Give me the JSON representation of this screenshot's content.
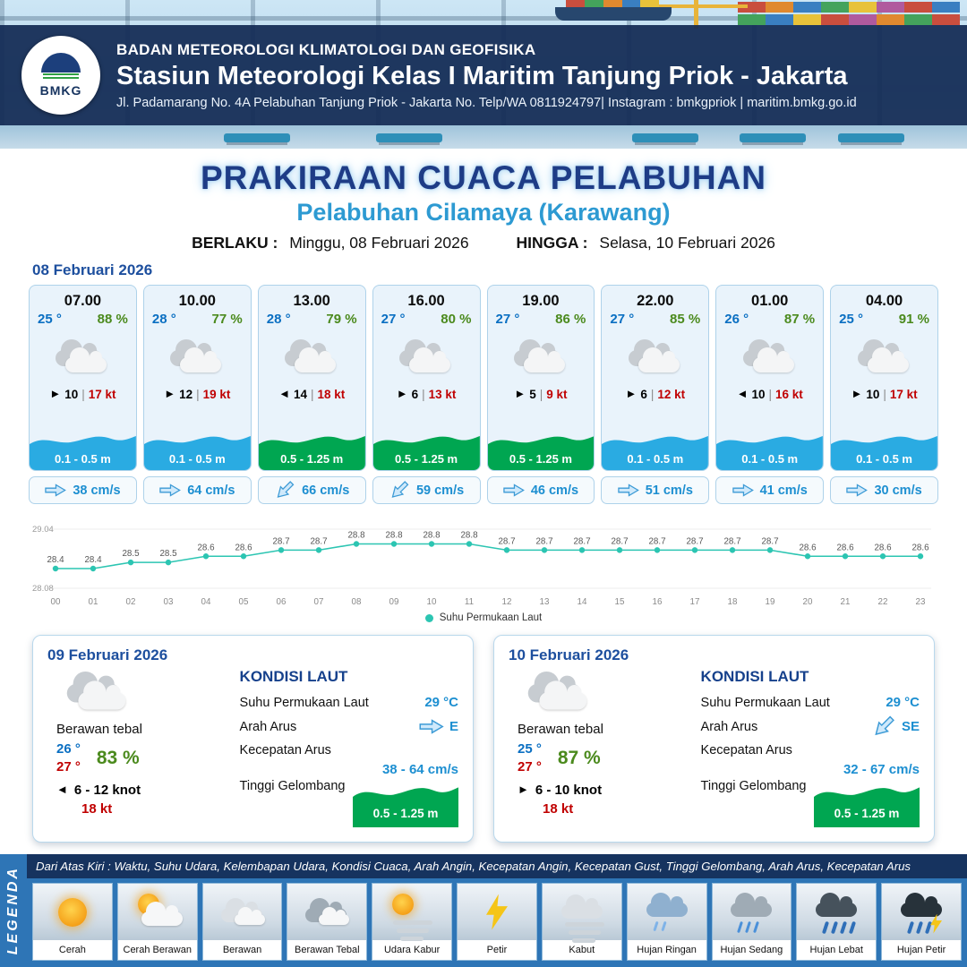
{
  "header": {
    "logo_text": "BMKG",
    "agency": "BADAN METEOROLOGI KLIMATOLOGI DAN GEOFISIKA",
    "station": "Stasiun Meteorologi Kelas I Maritim Tanjung Priok - Jakarta",
    "address": "Jl. Padamarang No. 4A Pelabuhan Tanjung Priok - Jakarta No. Telp/WA 0811924797| Instagram : bmkgpriok | maritim.bmkg.go.id"
  },
  "title": {
    "main": "PRAKIRAAN CUACA PELABUHAN",
    "subtitle": "Pelabuhan Cilamaya (Karawang)",
    "valid_label": "BERLAKU :",
    "valid_value": "Minggu, 08 Februari 2026",
    "until_label": "HINGGA :",
    "until_value": "Selasa, 10 Februari 2026"
  },
  "separators": {
    "wind": "|"
  },
  "forecast": {
    "date": "08 Februari 2026",
    "cards": [
      {
        "time": "07.00",
        "temp": "25 °",
        "humidity": "88 %",
        "wind_dir": "E",
        "wind_speed": "10",
        "wind_gust": "17 kt",
        "wave": "0.1 - 0.5 m",
        "wave_color": "blue",
        "current_speed": "38 cm/s",
        "current_dir": "E"
      },
      {
        "time": "10.00",
        "temp": "28 °",
        "humidity": "77 %",
        "wind_dir": "E",
        "wind_speed": "12",
        "wind_gust": "19 kt",
        "wave": "0.1 - 0.5 m",
        "wave_color": "blue",
        "current_speed": "64 cm/s",
        "current_dir": "E"
      },
      {
        "time": "13.00",
        "temp": "28 °",
        "humidity": "79 %",
        "wind_dir": "W",
        "wind_speed": "14",
        "wind_gust": "18 kt",
        "wave": "0.5 - 1.25 m",
        "wave_color": "green",
        "current_speed": "66 cm/s",
        "current_dir": "SE"
      },
      {
        "time": "16.00",
        "temp": "27 °",
        "humidity": "80 %",
        "wind_dir": "E",
        "wind_speed": "6",
        "wind_gust": "13 kt",
        "wave": "0.5 - 1.25 m",
        "wave_color": "green",
        "current_speed": "59 cm/s",
        "current_dir": "SE"
      },
      {
        "time": "19.00",
        "temp": "27 °",
        "humidity": "86 %",
        "wind_dir": "E",
        "wind_speed": "5",
        "wind_gust": "9 kt",
        "wave": "0.5 - 1.25 m",
        "wave_color": "green",
        "current_speed": "46 cm/s",
        "current_dir": "E"
      },
      {
        "time": "22.00",
        "temp": "27 °",
        "humidity": "85 %",
        "wind_dir": "E",
        "wind_speed": "6",
        "wind_gust": "12 kt",
        "wave": "0.1 - 0.5 m",
        "wave_color": "blue",
        "current_speed": "51 cm/s",
        "current_dir": "E"
      },
      {
        "time": "01.00",
        "temp": "26 °",
        "humidity": "87 %",
        "wind_dir": "W",
        "wind_speed": "10",
        "wind_gust": "16 kt",
        "wave": "0.1 - 0.5 m",
        "wave_color": "blue",
        "current_speed": "41 cm/s",
        "current_dir": "E"
      },
      {
        "time": "04.00",
        "temp": "25 °",
        "humidity": "91 %",
        "wind_dir": "E",
        "wind_speed": "10",
        "wind_gust": "17 kt",
        "wave": "0.1 - 0.5 m",
        "wave_color": "blue",
        "current_speed": "30 cm/s",
        "current_dir": "E"
      }
    ]
  },
  "chart_data": {
    "type": "line",
    "series_name": "Suhu Permukaan Laut",
    "x": [
      "00",
      "01",
      "02",
      "03",
      "04",
      "05",
      "06",
      "07",
      "08",
      "09",
      "10",
      "11",
      "12",
      "13",
      "14",
      "15",
      "16",
      "17",
      "18",
      "19",
      "20",
      "21",
      "22",
      "23"
    ],
    "values": [
      28.4,
      28.4,
      28.5,
      28.5,
      28.6,
      28.6,
      28.7,
      28.7,
      28.8,
      28.8,
      28.8,
      28.8,
      28.7,
      28.7,
      28.7,
      28.7,
      28.7,
      28.7,
      28.7,
      28.7,
      28.6,
      28.6,
      28.6,
      28.6
    ],
    "ylim": [
      28.08,
      29.04
    ],
    "line_color": "#2cc5b2",
    "legend_position": "bottom",
    "grid": false,
    "xlabel": "",
    "ylabel": ""
  },
  "sea_labels": {
    "heading": "KONDISI LAUT",
    "sst": "Suhu Permukaan Laut",
    "current_dir": "Arah Arus",
    "current_speed": "Kecepatan Arus",
    "wave": "Tinggi Gelombang"
  },
  "days": [
    {
      "date": "09 Februari 2026",
      "condition": "Berawan tebal",
      "temp_min": "26 °",
      "temp_max": "27 °",
      "humidity": "83 %",
      "wind_dir": "W",
      "wind_range": "6 - 12 knot",
      "gust": "18 kt",
      "sea": {
        "sst": "29 °C",
        "current_dir": "E",
        "current_speed": "38 - 64 cm/s",
        "wave": "0.5 - 1.25 m"
      }
    },
    {
      "date": "10 Februari 2026",
      "condition": "Berawan tebal",
      "temp_min": "25 °",
      "temp_max": "27 °",
      "humidity": "87 %",
      "wind_dir": "E",
      "wind_range": "6 - 10 knot",
      "gust": "18 kt",
      "sea": {
        "sst": "29 °C",
        "current_dir": "SE",
        "current_speed": "32 - 67 cm/s",
        "wave": "0.5 - 1.25 m"
      }
    }
  ],
  "legend": {
    "title": "LEGENDA",
    "note": "Dari Atas Kiri : Waktu, Suhu Udara, Kelembapan Udara, Kondisi Cuaca, Arah Angin, Kecepatan Angin, Kecepatan Gust, Tinggi Gelombang, Arah Arus, Kecepatan Arus",
    "items": [
      {
        "label": "Cerah",
        "icon": "sun-icon"
      },
      {
        "label": "Cerah Berawan",
        "icon": "sun-cloud-icon"
      },
      {
        "label": "Berawan",
        "icon": "cloud-icon"
      },
      {
        "label": "Berawan Tebal",
        "icon": "cloud-thick-icon"
      },
      {
        "label": "Udara Kabur",
        "icon": "sun-haze-icon"
      },
      {
        "label": "Petir",
        "icon": "lightning-icon"
      },
      {
        "label": "Kabut",
        "icon": "fog-icon"
      },
      {
        "label": "Hujan Ringan",
        "icon": "light-rain-icon"
      },
      {
        "label": "Hujan Sedang",
        "icon": "moderate-rain-icon"
      },
      {
        "label": "Hujan Lebat",
        "icon": "heavy-rain-icon"
      },
      {
        "label": "Hujan Petir",
        "icon": "thunderstorm-icon"
      }
    ]
  },
  "colors": {
    "wave_blue": "#2aabe2",
    "wave_green": "#00a651",
    "accent_blue": "#1d4f9e",
    "chart_teal": "#2cc5b2",
    "temp_blue": "#0a6fc2",
    "humidity_green": "#4b8a1d",
    "gust_red": "#c00000"
  }
}
